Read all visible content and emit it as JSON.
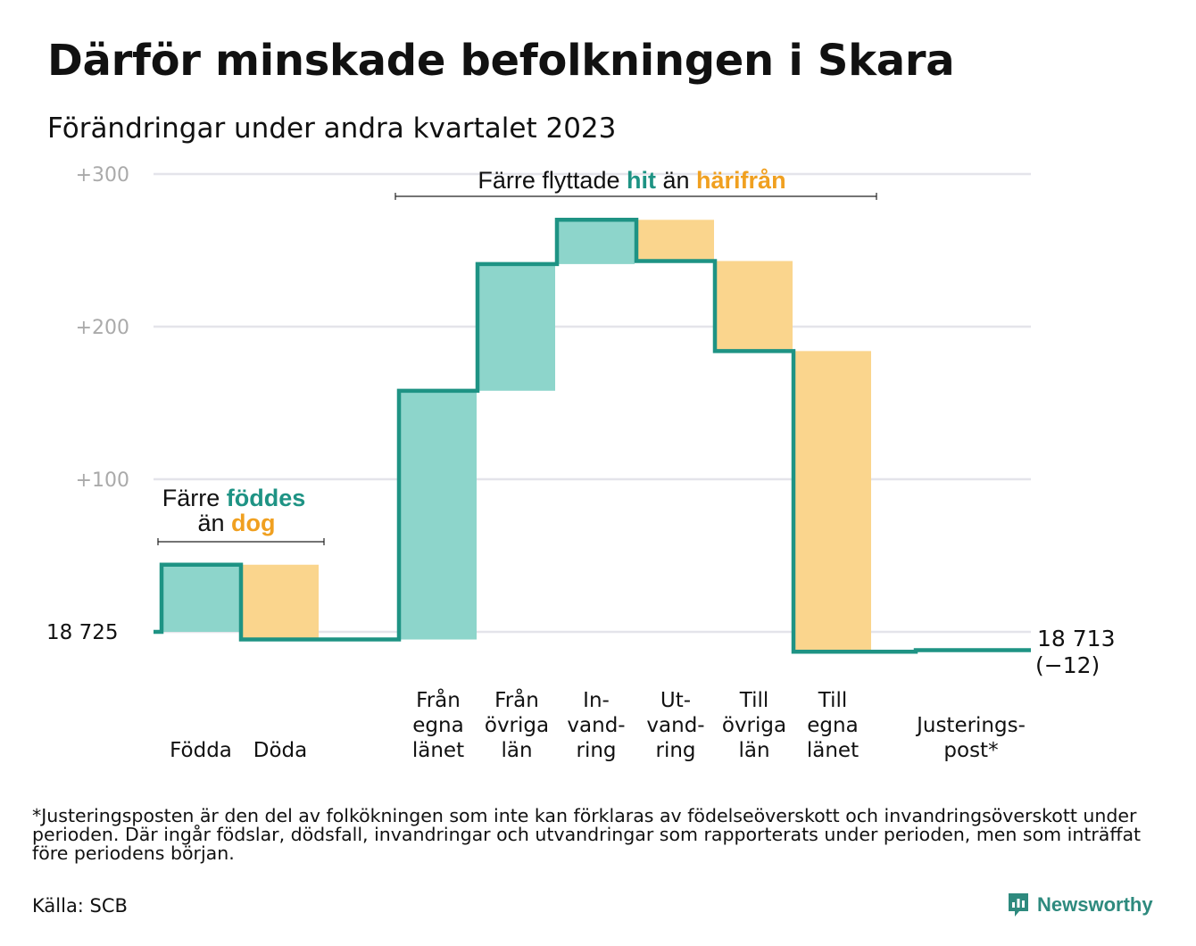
{
  "title": "Därför minskade befolkningen i Skara",
  "subtitle": "Förändringar under andra kvartalet 2023",
  "colors": {
    "increase": "#8dd5cb",
    "decrease": "#fad58d",
    "line": "#1e9384",
    "hit": "#1e9384",
    "harifran": "#f0a020",
    "grid": "#e4e4ea",
    "tick": "#aaaaaa"
  },
  "chart_data": {
    "type": "waterfall",
    "title": "Därför minskade befolkningen i Skara",
    "subtitle": "Förändringar under andra kvartalet 2023",
    "y_axis": {
      "min": -20,
      "max": 300,
      "ticks": [
        100,
        200,
        300
      ],
      "tick_labels": [
        "+100",
        "+200",
        "+300"
      ],
      "grid": true
    },
    "start_value": 18725,
    "start_label": "18 725",
    "end_label": "18 713",
    "end_change_label": "(−12)",
    "items": [
      {
        "label_lines": [
          "Födda"
        ],
        "type": "increase",
        "value": 44,
        "cumulative_before": 0,
        "cumulative_after": 44
      },
      {
        "label_lines": [
          "Döda"
        ],
        "type": "decrease",
        "value": -49,
        "cumulative_before": 44,
        "cumulative_after": -5
      },
      {
        "label_lines": [
          "Från",
          "egna",
          "länet"
        ],
        "type": "increase",
        "value": 163,
        "cumulative_before": -5,
        "cumulative_after": 158
      },
      {
        "label_lines": [
          "Från",
          "övriga",
          "län"
        ],
        "type": "increase",
        "value": 83,
        "cumulative_before": 158,
        "cumulative_after": 241
      },
      {
        "label_lines": [
          "In-",
          "vand-",
          "ring"
        ],
        "type": "increase",
        "value": 29,
        "cumulative_before": 241,
        "cumulative_after": 270
      },
      {
        "label_lines": [
          "Ut-",
          "vand-",
          "ring"
        ],
        "type": "decrease",
        "value": -27,
        "cumulative_before": 270,
        "cumulative_after": 243
      },
      {
        "label_lines": [
          "Till",
          "övriga",
          "län"
        ],
        "type": "decrease",
        "value": -59,
        "cumulative_before": 243,
        "cumulative_after": 184
      },
      {
        "label_lines": [
          "Till",
          "egna",
          "länet"
        ],
        "type": "decrease",
        "value": -197,
        "cumulative_before": 184,
        "cumulative_after": -13
      },
      {
        "label_lines": [
          "Justerings-",
          "post*"
        ],
        "type": "adjustment",
        "value": 1,
        "cumulative_before": -13,
        "cumulative_after": -12
      }
    ],
    "annotations": [
      {
        "group": "births",
        "line1_prefix": "Färre",
        "line1_highlight": "föddes",
        "line2_prefix": "än",
        "line2_highlight": "dog"
      },
      {
        "group": "migration",
        "prefix": "Färre flyttade",
        "highlight_1": "hit",
        "middle": "än",
        "highlight_2": "härifrån"
      }
    ]
  },
  "footnote": "*Justeringsposten är den del av folkökningen som inte kan förklaras av födelseöverskott och invandringsöverskott under perioden. Där ingår födslar, dödsfall, invandringar och utvandringar som rapporterats under perioden, men som inträffat före periodens början.",
  "source": "Källa: SCB",
  "brand": {
    "name": "Newsworthy",
    "icon": "newsworthy-logo-icon"
  }
}
